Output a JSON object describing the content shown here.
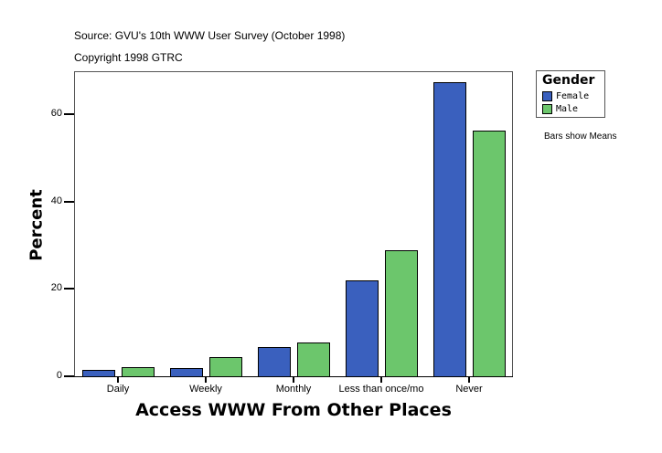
{
  "header": {
    "source": "Source: GVU's 10th WWW User Survey (October 1998)",
    "copyright": "Copyright 1998 GTRC"
  },
  "legend": {
    "title": "Gender",
    "items": [
      {
        "label": "Female",
        "color": "#3a60be"
      },
      {
        "label": "Male",
        "color": "#6cc66c"
      }
    ]
  },
  "note": "Bars show Means",
  "axes": {
    "xlabel": "Access WWW From Other Places",
    "ylabel": "Percent",
    "yticks": [
      "0",
      "20",
      "40",
      "60"
    ]
  },
  "chart_data": {
    "type": "bar",
    "title": "",
    "xlabel": "Access WWW From Other Places",
    "ylabel": "Percent",
    "ylim": [
      0,
      70
    ],
    "yticks": [
      0,
      20,
      40,
      60
    ],
    "grid": false,
    "legend_position": "right",
    "legend_title": "Gender",
    "categories": [
      "Daily",
      "Weekly",
      "Monthly",
      "Less than once/mo",
      "Never"
    ],
    "series": [
      {
        "name": "Female",
        "color": "#3a60be",
        "values": [
          1.5,
          1.9,
          6.7,
          22.0,
          67.4
        ]
      },
      {
        "name": "Male",
        "color": "#6cc66c",
        "values": [
          2.1,
          4.4,
          7.7,
          28.9,
          56.3
        ]
      }
    ],
    "annotations": [
      "Source: GVU's 10th WWW User Survey (October 1998)",
      "Copyright 1998 GTRC",
      "Bars show Means"
    ]
  }
}
